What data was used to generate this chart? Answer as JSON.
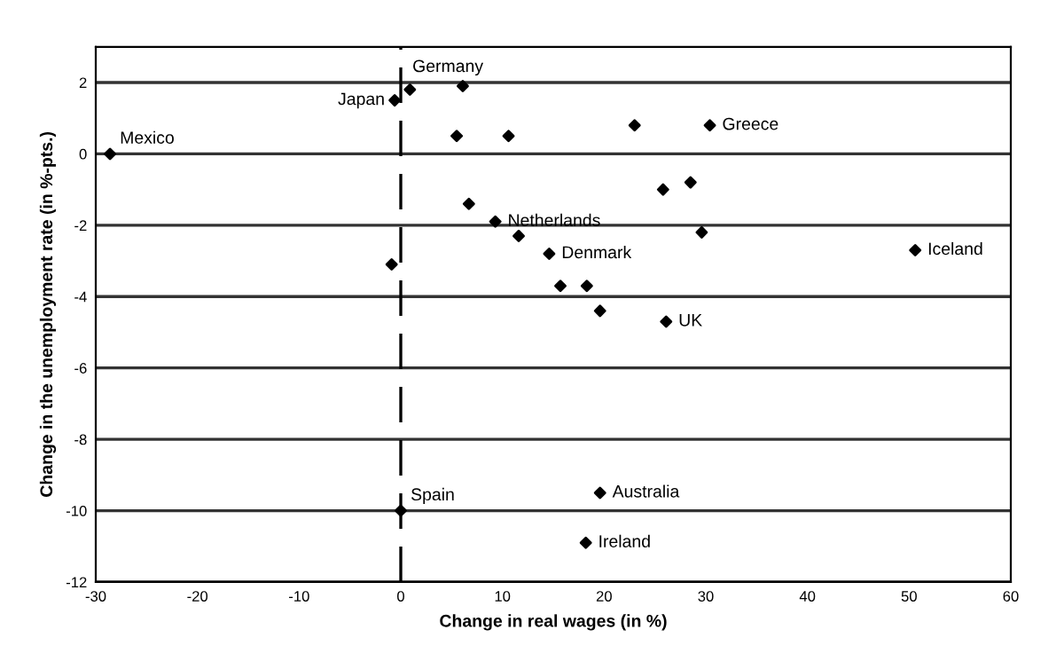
{
  "chart_data": {
    "type": "scatter",
    "xlabel": "Change in real wages (in %)",
    "ylabel": "Change in the unemployment rate (in %-pts.)",
    "x": [
      -28.6,
      -0.6,
      0.9,
      6.1,
      5.5,
      10.6,
      23.0,
      30.4,
      6.7,
      9.3,
      11.6,
      14.6,
      15.7,
      -0.9,
      25.8,
      28.5,
      29.6,
      18.3,
      19.6,
      26.1,
      50.6,
      19.6,
      18.2,
      0.0
    ],
    "values": [
      0,
      1.5,
      1.8,
      1.9,
      0.5,
      0.5,
      0.8,
      0.8,
      -1.4,
      -1.9,
      -2.3,
      -2.8,
      -3.7,
      -3.1,
      -1.0,
      -0.8,
      -2.2,
      -3.7,
      -4.4,
      -4.7,
      -2.7,
      -9.5,
      -10.9,
      -10.0
    ],
    "color": "#000000",
    "marker": "diamond",
    "annotations": [
      {
        "text": "Mexico",
        "x": -28.6,
        "y": 0
      },
      {
        "text": "Japan",
        "x": -0.6,
        "y": 1.5
      },
      {
        "text": "Germany",
        "x": 0.9,
        "y": 1.8
      },
      {
        "text": "Greece",
        "x": 30.4,
        "y": 0.8
      },
      {
        "text": "Netherlands",
        "x": 9.3,
        "y": -1.9
      },
      {
        "text": "Denmark",
        "x": 14.6,
        "y": -2.8
      },
      {
        "text": "Iceland",
        "x": 50.6,
        "y": -2.7
      },
      {
        "text": "UK",
        "x": 26.1,
        "y": -4.7
      },
      {
        "text": "Australia",
        "x": 19.6,
        "y": -9.5
      },
      {
        "text": "Ireland",
        "x": 18.2,
        "y": -10.9
      },
      {
        "text": "Spain",
        "x": 0.0,
        "y": -10.0
      }
    ],
    "xlim": [
      -30,
      60
    ],
    "xticks": [
      -30,
      -20,
      -10,
      0,
      10,
      20,
      30,
      40,
      50,
      60
    ],
    "ylim": [
      -12,
      3
    ],
    "yticks": [
      -12,
      -10,
      -8,
      -6,
      -4,
      -2,
      0,
      2
    ],
    "grid": "y",
    "ref_lines": [
      {
        "axis": "x",
        "value": 0,
        "line_style": "dashed"
      }
    ]
  }
}
